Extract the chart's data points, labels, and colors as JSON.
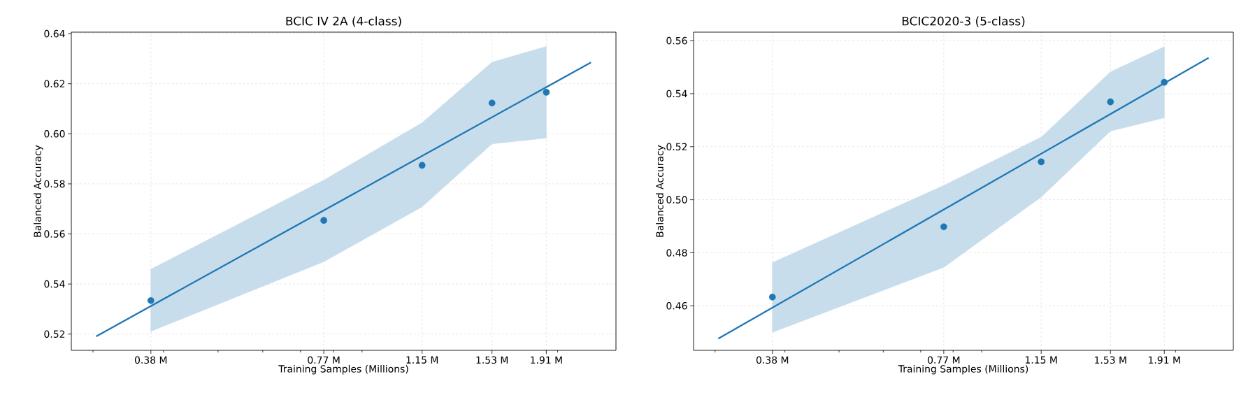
{
  "chart_data": [
    {
      "type": "scatter",
      "title": "BCIC IV 2A (4-class)",
      "xlabel": "Training Samples (Millions)",
      "ylabel": "Balanced Accuracy",
      "log": "x",
      "grid": true,
      "xlim": [
        0.2746,
        2.538
      ],
      "ylim": [
        0.5135,
        0.6406
      ],
      "xticks": [
        {
          "value": 0.3,
          "label": null
        },
        {
          "value": 0.38,
          "label": "0.38 M"
        },
        {
          "value": 0.4,
          "label": null
        },
        {
          "value": 0.5,
          "label": null
        },
        {
          "value": 0.6,
          "label": null
        },
        {
          "value": 0.7,
          "label": null
        },
        {
          "value": 0.77,
          "label": "0.77 M"
        },
        {
          "value": 0.8,
          "label": null
        },
        {
          "value": 0.9,
          "label": null
        },
        {
          "value": 1.15,
          "label": "1.15 M"
        },
        {
          "value": 1.53,
          "label": "1.53 M"
        },
        {
          "value": 1.91,
          "label": "1.91 M"
        },
        {
          "value": 2.0,
          "label": null
        }
      ],
      "yticks": [
        {
          "value": 0.52,
          "label": "0.52"
        },
        {
          "value": 0.54,
          "label": "0.54"
        },
        {
          "value": 0.56,
          "label": "0.56"
        },
        {
          "value": 0.58,
          "label": "0.58"
        },
        {
          "value": 0.6,
          "label": "0.60"
        },
        {
          "value": 0.62,
          "label": "0.62"
        },
        {
          "value": 0.64,
          "label": "0.64"
        }
      ],
      "series": [
        {
          "type": "line",
          "color": "#1f77b4",
          "x": [
            0.304,
            2.292
          ],
          "values": [
            0.5191,
            0.6285
          ]
        },
        {
          "marker": "circle",
          "color": "#1f77b4",
          "x": [
            0.38,
            0.77,
            1.15,
            1.53,
            1.91
          ],
          "values": [
            0.5334,
            0.5654,
            0.5874,
            0.6123,
            0.6166
          ],
          "lower": [
            0.5211,
            0.5489,
            0.5708,
            0.596,
            0.5983
          ],
          "upper": [
            0.5459,
            0.5815,
            0.6044,
            0.6286,
            0.6349
          ]
        }
      ]
    },
    {
      "type": "scatter",
      "title": "BCIC2020-3 (5-class)",
      "xlabel": "Training Samples (Millions)",
      "ylabel": "Balanced Accuracy",
      "log": "x",
      "grid": true,
      "xlim": [
        0.2746,
        2.538
      ],
      "ylim": [
        0.4432,
        0.5632
      ],
      "xticks": [
        {
          "value": 0.3,
          "label": null
        },
        {
          "value": 0.38,
          "label": "0.38 M"
        },
        {
          "value": 0.4,
          "label": null
        },
        {
          "value": 0.5,
          "label": null
        },
        {
          "value": 0.6,
          "label": null
        },
        {
          "value": 0.7,
          "label": null
        },
        {
          "value": 0.77,
          "label": "0.77 M"
        },
        {
          "value": 0.8,
          "label": null
        },
        {
          "value": 0.9,
          "label": null
        },
        {
          "value": 1.15,
          "label": "1.15 M"
        },
        {
          "value": 1.53,
          "label": "1.53 M"
        },
        {
          "value": 1.91,
          "label": "1.91 M"
        },
        {
          "value": 2.0,
          "label": null
        }
      ],
      "yticks": [
        {
          "value": 0.46,
          "label": "0.46"
        },
        {
          "value": 0.48,
          "label": "0.48"
        },
        {
          "value": 0.5,
          "label": "0.50"
        },
        {
          "value": 0.52,
          "label": "0.52"
        },
        {
          "value": 0.54,
          "label": "0.54"
        },
        {
          "value": 0.56,
          "label": "0.56"
        }
      ],
      "series": [
        {
          "type": "line",
          "color": "#1f77b4",
          "x": [
            0.304,
            2.292
          ],
          "values": [
            0.4476,
            0.5535
          ]
        },
        {
          "marker": "circle",
          "color": "#1f77b4",
          "x": [
            0.38,
            0.77,
            1.15,
            1.53,
            1.91
          ],
          "values": [
            0.4633,
            0.4898,
            0.5143,
            0.5369,
            0.5443
          ],
          "lower": [
            0.45,
            0.4745,
            0.501,
            0.5259,
            0.5309
          ],
          "upper": [
            0.4763,
            0.5054,
            0.5236,
            0.5482,
            0.5577
          ]
        }
      ]
    }
  ]
}
